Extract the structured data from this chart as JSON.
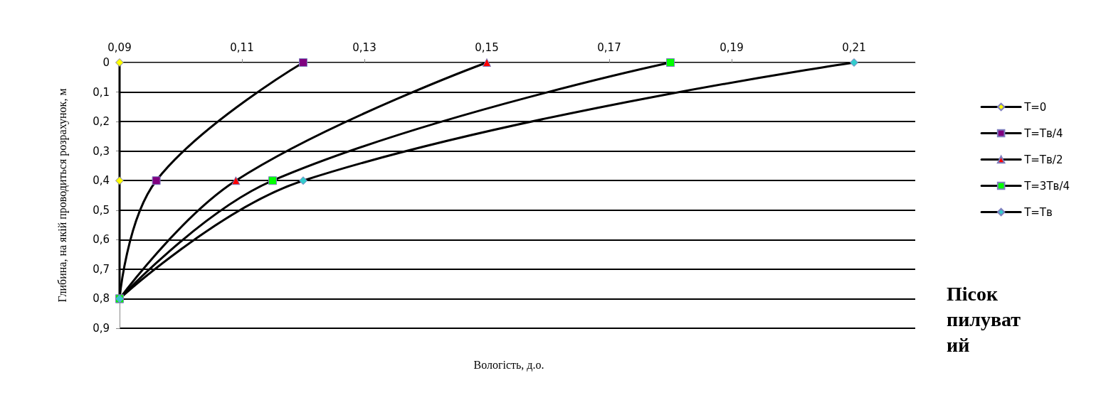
{
  "chart_data": {
    "type": "line",
    "xlabel": "Вологість, д.о.",
    "ylabel": "Глибина, на якій проводиться розрахунок, м",
    "annotations": [
      "Пісок пилуватий"
    ],
    "xlim": [
      0.09,
      0.22
    ],
    "xticks": [
      {
        "value": 0.09,
        "label": "0,09"
      },
      {
        "value": 0.11,
        "label": "0,11"
      },
      {
        "value": 0.13,
        "label": "0,13"
      },
      {
        "value": 0.15,
        "label": "0,15"
      },
      {
        "value": 0.17,
        "label": "0,17"
      },
      {
        "value": 0.19,
        "label": "0,19"
      },
      {
        "value": 0.21,
        "label": "0,21"
      }
    ],
    "ylim": [
      0.9,
      0
    ],
    "yticks": [
      0,
      {
        "value": 0.1,
        "label": "0,1"
      },
      {
        "value": 0.2,
        "label": "0,2"
      },
      {
        "value": 0.3,
        "label": "0,3"
      },
      {
        "value": 0.4,
        "label": "0,4"
      },
      {
        "value": 0.5,
        "label": "0,5"
      },
      {
        "value": 0.6,
        "label": "0,6"
      },
      {
        "value": 0.7,
        "label": "0,7"
      },
      {
        "value": 0.8,
        "label": "0,8"
      },
      {
        "value": 0.9,
        "label": "0,9"
      }
    ],
    "grid": "y",
    "legend": "right",
    "series": [
      {
        "name": "T=0",
        "color": "#ffff00",
        "marker": "diamond",
        "x": [
          0.09,
          0.09,
          0.09
        ],
        "values": [
          0,
          0.4,
          0.8
        ]
      },
      {
        "name": "T=Тв/4",
        "color": "#800080",
        "marker": "square",
        "x": [
          0.12,
          0.096,
          0.09
        ],
        "values": [
          0,
          0.4,
          0.8
        ]
      },
      {
        "name": "T=Тв/2",
        "color": "#ff0000",
        "marker": "triangle",
        "x": [
          0.15,
          0.109,
          0.09
        ],
        "values": [
          0,
          0.4,
          0.8
        ]
      },
      {
        "name": "T=3Тв/4",
        "color": "#00ff00",
        "marker": "square",
        "x": [
          0.18,
          0.115,
          0.09
        ],
        "values": [
          0,
          0.4,
          0.8
        ]
      },
      {
        "name": "T=Тв",
        "color": "#33cccc",
        "marker": "diamond",
        "x": [
          0.21,
          0.12,
          0.09
        ],
        "values": [
          0,
          0.4,
          0.8
        ]
      }
    ]
  }
}
